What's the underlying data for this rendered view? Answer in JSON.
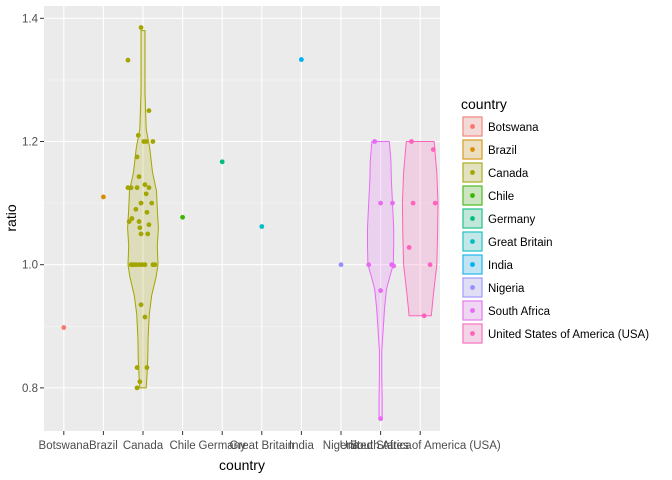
{
  "chart_data": {
    "type": "violin",
    "title": "",
    "xlabel": "country",
    "ylabel": "ratio",
    "ylim": [
      0.73,
      1.42
    ],
    "yticks": [
      0.8,
      1.0,
      1.2,
      1.4
    ],
    "ytick_labels": [
      "0.8",
      "1.0",
      "1.2",
      "1.4"
    ],
    "grid": true,
    "legend": {
      "title": "country",
      "placement": "right",
      "entries": [
        {
          "label": "Botswana",
          "color": "#F8766D"
        },
        {
          "label": "Brazil",
          "color": "#D89000"
        },
        {
          "label": "Canada",
          "color": "#A3A500"
        },
        {
          "label": "Chile",
          "color": "#39B600"
        },
        {
          "label": "Germany",
          "color": "#00BF7D"
        },
        {
          "label": "Great Britain",
          "color": "#00BFC4"
        },
        {
          "label": "India",
          "color": "#00B0F6"
        },
        {
          "label": "Nigeria",
          "color": "#9590FF"
        },
        {
          "label": "South Africa",
          "color": "#E76BF3"
        },
        {
          "label": "United States of America (USA)",
          "color": "#FF62BC"
        }
      ]
    },
    "categories": [
      "Botswana",
      "Brazil",
      "Canada",
      "Chile",
      "Germany",
      "Great Britain",
      "India",
      "Nigeria",
      "South Africa",
      "United States of America (USA)"
    ],
    "series": [
      {
        "name": "Botswana",
        "color": "#F8766D",
        "points": [
          {
            "x": 0.0,
            "y": 0.898
          }
        ]
      },
      {
        "name": "Brazil",
        "color": "#D89000",
        "points": [
          {
            "x": 0.0,
            "y": 1.11
          }
        ]
      },
      {
        "name": "Canada",
        "color": "#A3A500",
        "violin": [
          {
            "y": 0.8,
            "w": 0.08
          },
          {
            "y": 0.82,
            "w": 0.1
          },
          {
            "y": 0.85,
            "w": 0.12
          },
          {
            "y": 0.88,
            "w": 0.13
          },
          {
            "y": 0.92,
            "w": 0.16
          },
          {
            "y": 0.95,
            "w": 0.22
          },
          {
            "y": 0.98,
            "w": 0.33
          },
          {
            "y": 1.0,
            "w": 0.38
          },
          {
            "y": 1.03,
            "w": 0.36
          },
          {
            "y": 1.06,
            "w": 0.39
          },
          {
            "y": 1.09,
            "w": 0.36
          },
          {
            "y": 1.12,
            "w": 0.34
          },
          {
            "y": 1.15,
            "w": 0.24
          },
          {
            "y": 1.19,
            "w": 0.17
          },
          {
            "y": 1.22,
            "w": 0.08
          },
          {
            "y": 1.24,
            "w": 0.07
          },
          {
            "y": 1.28,
            "w": 0.05
          },
          {
            "y": 1.33,
            "w": 0.05
          },
          {
            "y": 1.38,
            "w": 0.05
          }
        ],
        "points": [
          {
            "x": -0.38,
            "y": 1.332
          },
          {
            "x": -0.05,
            "y": 1.385
          },
          {
            "x": 0.15,
            "y": 1.25
          },
          {
            "x": -0.12,
            "y": 1.21
          },
          {
            "x": 0.02,
            "y": 1.2
          },
          {
            "x": 0.08,
            "y": 1.2
          },
          {
            "x": 0.25,
            "y": 1.2
          },
          {
            "x": -0.15,
            "y": 1.175
          },
          {
            "x": -0.1,
            "y": 1.143
          },
          {
            "x": 0.05,
            "y": 1.13
          },
          {
            "x": -0.38,
            "y": 1.125
          },
          {
            "x": -0.3,
            "y": 1.125
          },
          {
            "x": -0.15,
            "y": 1.125
          },
          {
            "x": 0.15,
            "y": 1.125
          },
          {
            "x": 0.08,
            "y": 1.115
          },
          {
            "x": -0.05,
            "y": 1.1
          },
          {
            "x": 0.22,
            "y": 1.1
          },
          {
            "x": -0.18,
            "y": 1.09
          },
          {
            "x": 0.1,
            "y": 1.085
          },
          {
            "x": -0.28,
            "y": 1.075
          },
          {
            "x": -0.35,
            "y": 1.07
          },
          {
            "x": -0.1,
            "y": 1.07
          },
          {
            "x": 0.15,
            "y": 1.065
          },
          {
            "x": -0.08,
            "y": 1.06
          },
          {
            "x": -0.05,
            "y": 1.05
          },
          {
            "x": 0.12,
            "y": 1.05
          },
          {
            "x": -0.3,
            "y": 1.0
          },
          {
            "x": -0.25,
            "y": 1.0
          },
          {
            "x": -0.18,
            "y": 1.0
          },
          {
            "x": -0.1,
            "y": 1.0
          },
          {
            "x": -0.02,
            "y": 1.0
          },
          {
            "x": 0.05,
            "y": 1.0
          },
          {
            "x": 0.25,
            "y": 1.0
          },
          {
            "x": 0.3,
            "y": 1.0
          },
          {
            "x": -0.05,
            "y": 0.935
          },
          {
            "x": 0.05,
            "y": 0.915
          },
          {
            "x": -0.15,
            "y": 0.833
          },
          {
            "x": 0.1,
            "y": 0.833
          },
          {
            "x": -0.08,
            "y": 0.81
          },
          {
            "x": -0.15,
            "y": 0.8
          }
        ]
      },
      {
        "name": "Chile",
        "color": "#39B600",
        "points": [
          {
            "x": 0.0,
            "y": 1.077
          }
        ]
      },
      {
        "name": "Germany",
        "color": "#00BF7D",
        "points": [
          {
            "x": 0.0,
            "y": 1.167
          }
        ]
      },
      {
        "name": "Great Britain",
        "color": "#00BFC4",
        "points": [
          {
            "x": 0.0,
            "y": 1.062
          }
        ]
      },
      {
        "name": "India",
        "color": "#00B0F6",
        "points": [
          {
            "x": 0.0,
            "y": 1.333
          }
        ]
      },
      {
        "name": "Nigeria",
        "color": "#9590FF",
        "points": [
          {
            "x": 0.0,
            "y": 1.0
          }
        ]
      },
      {
        "name": "South Africa",
        "color": "#E76BF3",
        "violin": [
          {
            "y": 0.75,
            "w": 0.04
          },
          {
            "y": 0.78,
            "w": 0.04
          },
          {
            "y": 0.82,
            "w": 0.03
          },
          {
            "y": 0.86,
            "w": 0.03
          },
          {
            "y": 0.89,
            "w": 0.06
          },
          {
            "y": 0.93,
            "w": 0.1
          },
          {
            "y": 0.96,
            "w": 0.15
          },
          {
            "y": 0.98,
            "w": 0.23
          },
          {
            "y": 1.0,
            "w": 0.32
          },
          {
            "y": 1.03,
            "w": 0.33
          },
          {
            "y": 1.06,
            "w": 0.33
          },
          {
            "y": 1.1,
            "w": 0.3
          },
          {
            "y": 1.14,
            "w": 0.27
          },
          {
            "y": 1.17,
            "w": 0.26
          },
          {
            "y": 1.2,
            "w": 0.22
          }
        ],
        "points": [
          {
            "x": -0.15,
            "y": 1.2
          },
          {
            "x": 0.0,
            "y": 1.1
          },
          {
            "x": 0.3,
            "y": 1.1
          },
          {
            "x": -0.3,
            "y": 1.0
          },
          {
            "x": 0.28,
            "y": 1.0
          },
          {
            "x": 0.33,
            "y": 0.998
          },
          {
            "x": 0.0,
            "y": 0.958
          },
          {
            "x": 0.0,
            "y": 0.75
          }
        ]
      },
      {
        "name": "United States of America (USA)",
        "color": "#FF62BC",
        "violin": [
          {
            "y": 0.917,
            "w": 0.28
          },
          {
            "y": 0.95,
            "w": 0.33
          },
          {
            "y": 1.0,
            "w": 0.42
          },
          {
            "y": 1.05,
            "w": 0.44
          },
          {
            "y": 1.1,
            "w": 0.45
          },
          {
            "y": 1.15,
            "w": 0.42
          },
          {
            "y": 1.2,
            "w": 0.35
          }
        ],
        "points": [
          {
            "x": -0.22,
            "y": 1.2
          },
          {
            "x": 0.33,
            "y": 1.187
          },
          {
            "x": -0.18,
            "y": 1.1
          },
          {
            "x": 0.38,
            "y": 1.1
          },
          {
            "x": -0.28,
            "y": 1.028
          },
          {
            "x": 0.25,
            "y": 1.0
          },
          {
            "x": 0.1,
            "y": 0.917
          }
        ]
      }
    ]
  }
}
